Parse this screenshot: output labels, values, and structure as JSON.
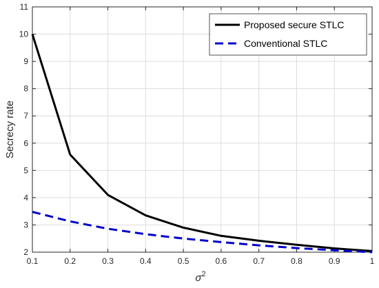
{
  "chart_data": {
    "type": "line",
    "title": "",
    "xlabel": "σ",
    "xlabel_superscript": "2",
    "ylabel": "Secrecy rate",
    "xlim": [
      0.1,
      1
    ],
    "ylim": [
      2,
      11
    ],
    "x_ticks": [
      "0.1",
      "0.2",
      "0.3",
      "0.4",
      "0.5",
      "0.6",
      "0.7",
      "0.8",
      "0.9",
      "1"
    ],
    "y_ticks": [
      "2",
      "3",
      "4",
      "5",
      "6",
      "7",
      "8",
      "9",
      "10",
      "11"
    ],
    "grid": true,
    "legend_position": "top-right",
    "x": [
      0.1,
      0.2,
      0.3,
      0.4,
      0.5,
      0.6,
      0.7,
      0.8,
      0.9,
      1.0
    ],
    "series": [
      {
        "name": "Proposed secure STLC",
        "color": "#000000",
        "line_style": "solid",
        "values": [
          10.0,
          5.58,
          4.1,
          3.35,
          2.9,
          2.6,
          2.42,
          2.27,
          2.14,
          2.04
        ]
      },
      {
        "name": "Conventional STLC",
        "color": "#0000cc",
        "line_style": "dashed",
        "values": [
          3.48,
          3.13,
          2.86,
          2.66,
          2.5,
          2.37,
          2.25,
          2.15,
          2.07,
          2.0
        ]
      }
    ]
  }
}
